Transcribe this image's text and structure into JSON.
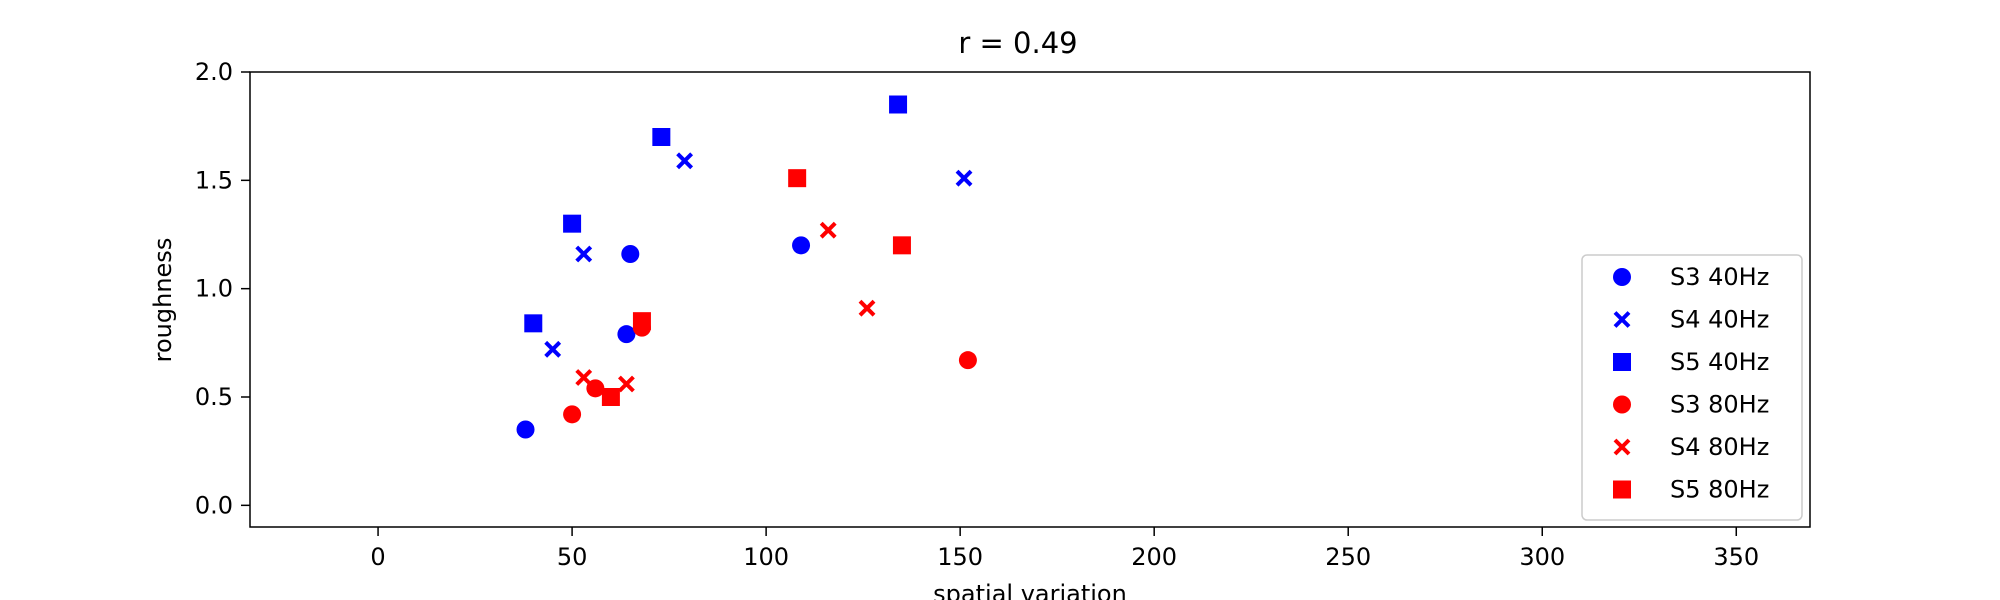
{
  "chart_data": {
    "type": "scatter",
    "title": "r = 0.49",
    "xlabel": "spatial variation",
    "ylabel": "roughness",
    "xlim": [
      -33,
      369
    ],
    "ylim": [
      -0.1,
      2.0
    ],
    "xticks": [
      0,
      50,
      100,
      150,
      200,
      250,
      300,
      350
    ],
    "yticks": [
      0.0,
      0.5,
      1.0,
      1.5,
      2.0
    ],
    "grid": false,
    "legend_position": "lower-right",
    "series": [
      {
        "name": "S3 40Hz",
        "color": "#0000ff",
        "marker": "circle",
        "points": [
          [
            38,
            0.35
          ],
          [
            64,
            0.79
          ],
          [
            65,
            1.16
          ],
          [
            109,
            1.2
          ]
        ]
      },
      {
        "name": "S4 40Hz",
        "color": "#0000ff",
        "marker": "x",
        "points": [
          [
            45,
            0.72
          ],
          [
            53,
            1.16
          ],
          [
            79,
            1.59
          ],
          [
            151,
            1.51
          ]
        ]
      },
      {
        "name": "S5 40Hz",
        "color": "#0000ff",
        "marker": "square",
        "points": [
          [
            40,
            0.84
          ],
          [
            50,
            1.3
          ],
          [
            73,
            1.7
          ],
          [
            134,
            1.85
          ]
        ]
      },
      {
        "name": "S3 80Hz",
        "color": "#ff0000",
        "marker": "circle",
        "points": [
          [
            50,
            0.42
          ],
          [
            56,
            0.54
          ],
          [
            68,
            0.82
          ],
          [
            152,
            0.67
          ]
        ]
      },
      {
        "name": "S4 80Hz",
        "color": "#ff0000",
        "marker": "x",
        "points": [
          [
            53,
            0.59
          ],
          [
            64,
            0.56
          ],
          [
            116,
            1.27
          ],
          [
            126,
            0.91
          ]
        ]
      },
      {
        "name": "S5 80Hz",
        "color": "#ff0000",
        "marker": "square",
        "points": [
          [
            60,
            0.5
          ],
          [
            68,
            0.85
          ],
          [
            108,
            1.51
          ],
          [
            135,
            1.2
          ]
        ]
      }
    ]
  }
}
